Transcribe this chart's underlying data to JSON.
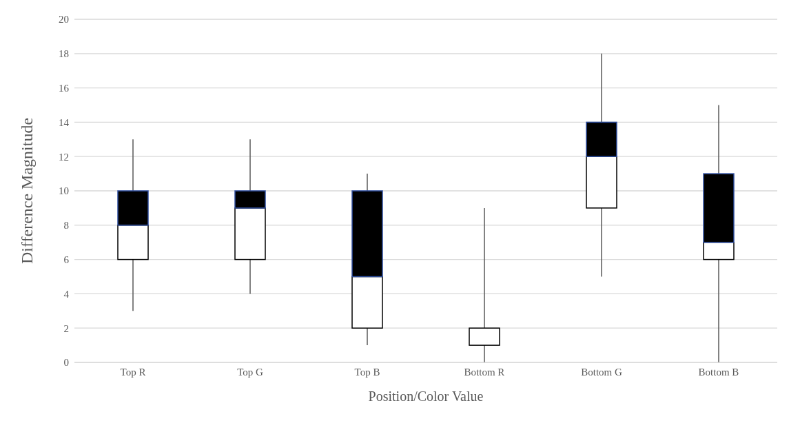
{
  "chart_data": {
    "type": "box",
    "xlabel": "Position/Color Value",
    "ylabel": "Difference Magnitude",
    "categories": [
      "Top R",
      "Top G",
      "Top B",
      "Bottom R",
      "Bottom G",
      "Bottom B"
    ],
    "series": [
      {
        "color": "#000000",
        "boxes": [
          {
            "low": 3,
            "q1": 6,
            "median": 8,
            "q3": 10,
            "high": 13
          },
          {
            "low": 4,
            "q1": 6,
            "median": 9,
            "q3": 10,
            "high": 13
          },
          {
            "low": 1,
            "q1": 2,
            "median": 5,
            "q3": 10,
            "high": 11
          },
          {
            "low": 0,
            "q1": 1,
            "median": 2,
            "q3": 2,
            "high": 9
          },
          {
            "low": 5,
            "q1": 9,
            "median": 12,
            "q3": 14,
            "high": 18
          },
          {
            "low": 0,
            "q1": 6,
            "median": 7,
            "q3": 11,
            "high": 15
          }
        ]
      }
    ],
    "ylim": [
      0,
      20
    ],
    "yticks": [
      0,
      2,
      4,
      6,
      8,
      10,
      12,
      14,
      16,
      18,
      20
    ],
    "grid": "y"
  }
}
